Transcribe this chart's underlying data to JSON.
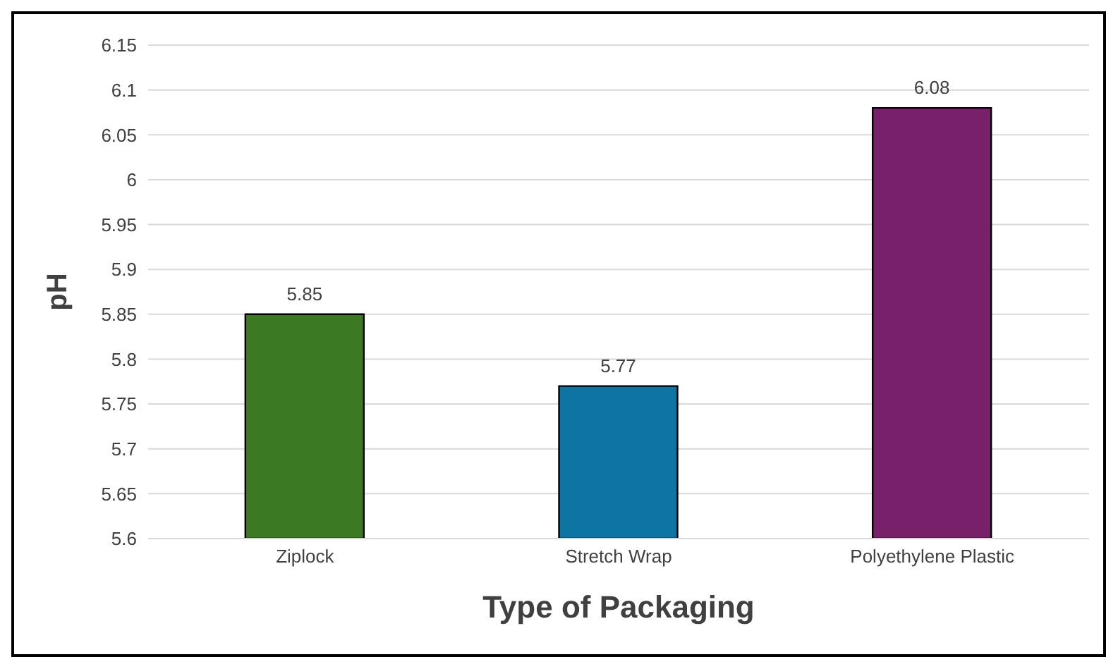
{
  "chart_data": {
    "type": "bar",
    "xlabel": "Type of Packaging",
    "ylabel": "pH",
    "categories": [
      "Ziplock",
      "Stretch Wrap",
      "Polyethylene Plastic"
    ],
    "values": [
      5.85,
      5.77,
      6.08
    ],
    "colors": [
      "#3b7a23",
      "#0e74a2",
      "#782069"
    ],
    "ylim": [
      5.6,
      6.15
    ],
    "yticks": [
      5.6,
      5.65,
      5.7,
      5.75,
      5.8,
      5.85,
      5.9,
      5.95,
      6,
      6.05,
      6.1,
      6.15
    ],
    "grid": "y",
    "data_labels": true
  }
}
